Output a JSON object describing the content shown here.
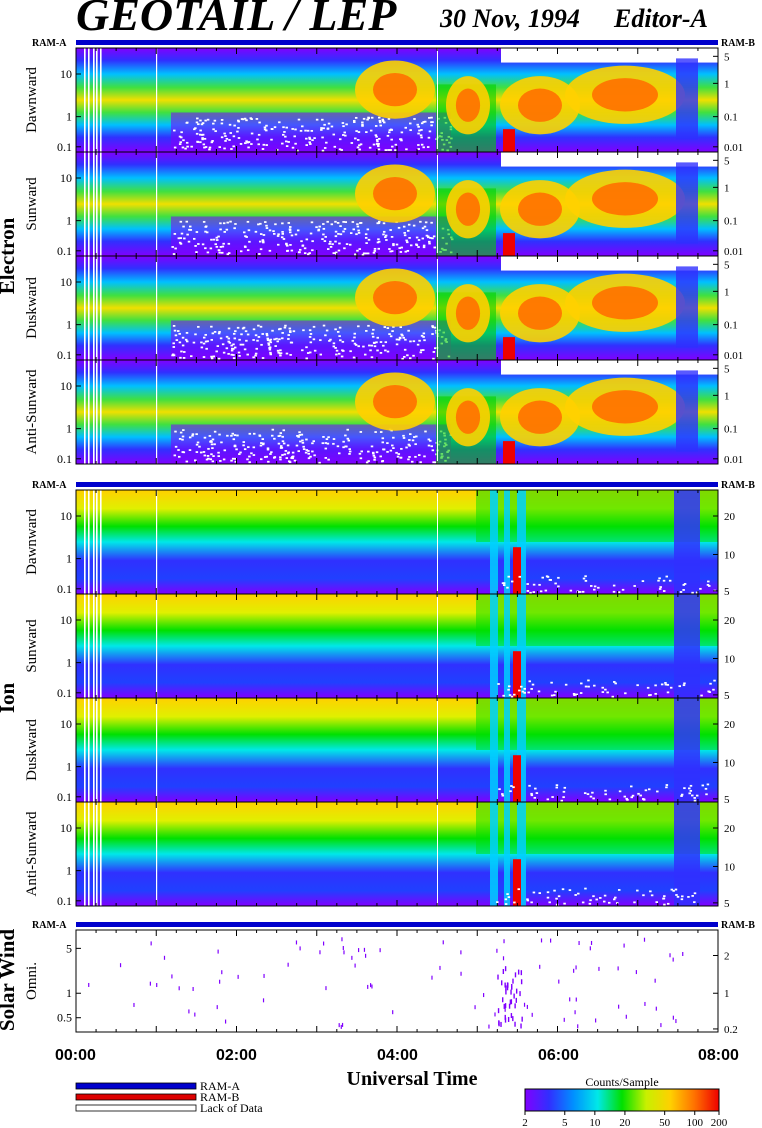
{
  "header": {
    "title": "GEOTAIL / LEP",
    "date": "30 Nov, 1994",
    "editor": "Editor-A"
  },
  "chart_data": {
    "type": "heatmap",
    "xlabel": "Universal Time",
    "x_ticks": [
      "00:00",
      "02:00",
      "04:00",
      "06:00",
      "08:00"
    ],
    "xlim": [
      "00:00",
      "08:00"
    ],
    "ram_labels": {
      "left": "RAM-A",
      "right": "RAM-B"
    },
    "groups": [
      {
        "name": "Electron",
        "panels": [
          {
            "direction": "Dawnward",
            "y_ticks": [
              "10",
              "1",
              "0.1"
            ],
            "y2_ticks": [
              "5",
              "1",
              "0.1",
              "0.01"
            ]
          },
          {
            "direction": "Sunward",
            "y_ticks": [
              "10",
              "1",
              "0.1"
            ],
            "y2_ticks": [
              "5",
              "1",
              "0.1",
              "0.01"
            ]
          },
          {
            "direction": "Duskward",
            "y_ticks": [
              "10",
              "1",
              "0.1"
            ],
            "y2_ticks": [
              "5",
              "1",
              "0.1",
              "0.01"
            ]
          },
          {
            "direction": "Anti-Sunward",
            "y_ticks": [
              "10",
              "1",
              "0.1"
            ],
            "y2_ticks": [
              "5",
              "1",
              "0.1",
              "0.01"
            ]
          }
        ]
      },
      {
        "name": "Ion",
        "panels": [
          {
            "direction": "Dawnward",
            "y_ticks": [
              "10",
              "1",
              "0.1"
            ],
            "y2_ticks": [
              "20",
              "10",
              "5"
            ]
          },
          {
            "direction": "Sunward",
            "y_ticks": [
              "10",
              "1",
              "0.1"
            ],
            "y2_ticks": [
              "20",
              "10",
              "5"
            ]
          },
          {
            "direction": "Duskward",
            "y_ticks": [
              "10",
              "1",
              "0.1"
            ],
            "y2_ticks": [
              "20",
              "10",
              "5"
            ]
          },
          {
            "direction": "Anti-Sunward",
            "y_ticks": [
              "10",
              "1",
              "0.1"
            ],
            "y2_ticks": [
              "20",
              "10",
              "5"
            ]
          }
        ]
      },
      {
        "name": "Solar Wind",
        "panels": [
          {
            "direction": "Omni.",
            "y_ticks": [
              "5",
              "1",
              "0.5"
            ],
            "y2_ticks": [
              "2",
              "1",
              "0.2"
            ]
          }
        ]
      }
    ],
    "legend": {
      "items": [
        {
          "label": "RAM-A",
          "color": "#0000cc"
        },
        {
          "label": "RAM-B",
          "color": "#dd0000"
        },
        {
          "label": "Lack of Data",
          "color": "#ffffff"
        }
      ]
    },
    "colorbar": {
      "title": "Counts/Sample",
      "ticks": [
        "2",
        "5",
        "10",
        "20",
        "50",
        "100",
        "200"
      ]
    }
  }
}
